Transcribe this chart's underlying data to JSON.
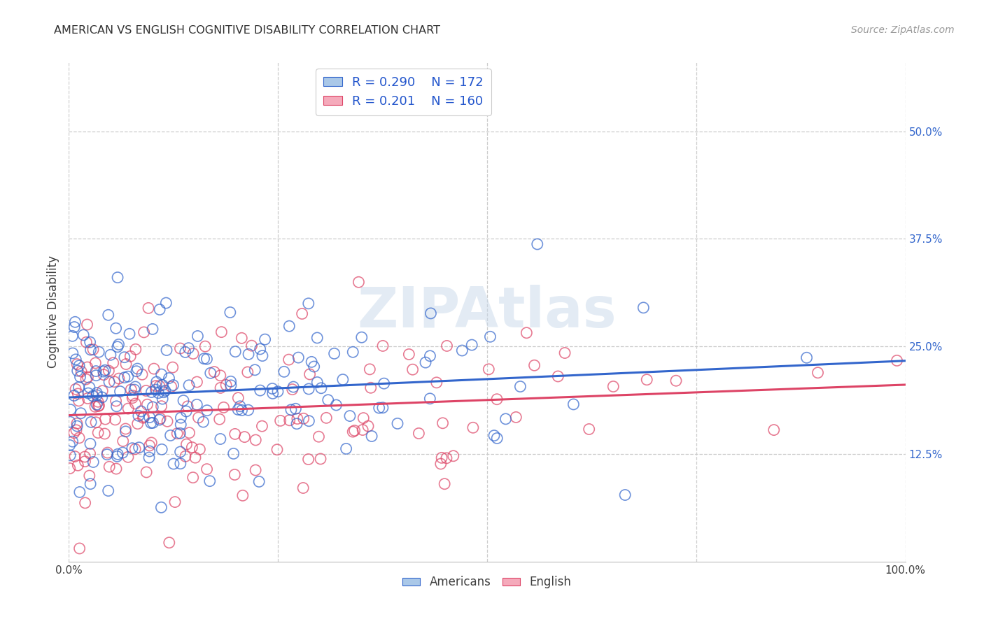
{
  "title": "AMERICAN VS ENGLISH COGNITIVE DISABILITY CORRELATION CHART",
  "source": "Source: ZipAtlas.com",
  "ylabel": "Cognitive Disability",
  "watermark": "ZIPAtlas",
  "xlim": [
    0.0,
    1.0
  ],
  "ylim": [
    0.0,
    0.58
  ],
  "yticks": [
    0.125,
    0.25,
    0.375,
    0.5
  ],
  "ytick_labels": [
    "12.5%",
    "25.0%",
    "37.5%",
    "50.0%"
  ],
  "american_R": 0.29,
  "american_N": 172,
  "english_R": 0.201,
  "english_N": 160,
  "american_color": "#aac8e8",
  "english_color": "#f5aabb",
  "american_line_color": "#3366cc",
  "english_line_color": "#dd4466",
  "legend_text_color": "#2255cc",
  "title_color": "#303030",
  "background_color": "#ffffff",
  "grid_color": "#cccccc",
  "am_intercept": 0.195,
  "am_slope": 0.055,
  "en_intercept": 0.17,
  "en_slope": 0.048,
  "seed": 7
}
